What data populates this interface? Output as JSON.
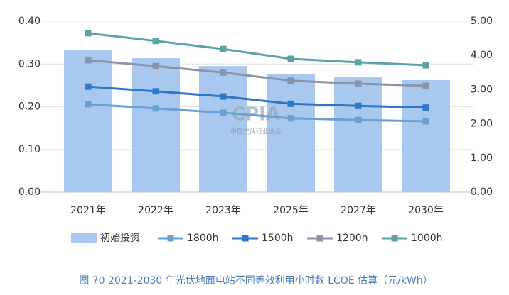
{
  "chart_data": {
    "type": "bar-line",
    "categories": [
      "2021年",
      "2022年",
      "2023年",
      "2025年",
      "2027年",
      "2030年"
    ],
    "series": [
      {
        "name": "初始投资",
        "type": "bar",
        "axis": "y2",
        "color": "#a9c8f0",
        "values": [
          4.15,
          3.92,
          3.69,
          3.46,
          3.36,
          3.28
        ]
      },
      {
        "name": "1800h",
        "type": "line",
        "color": "#6a9fd4",
        "values": [
          0.206,
          0.196,
          0.186,
          0.173,
          0.169,
          0.166
        ]
      },
      {
        "name": "1500h",
        "type": "line",
        "color": "#2f75c8",
        "values": [
          0.247,
          0.236,
          0.224,
          0.207,
          0.202,
          0.198
        ]
      },
      {
        "name": "1200h",
        "type": "line",
        "color": "#8a93a8",
        "values": [
          0.309,
          0.295,
          0.28,
          0.261,
          0.254,
          0.249
        ]
      },
      {
        "name": "1000h",
        "type": "line",
        "color": "#5ba3a8",
        "values": [
          0.372,
          0.354,
          0.335,
          0.312,
          0.304,
          0.297
        ]
      }
    ],
    "ylim": [
      0,
      0.4
    ],
    "yticks": [
      {
        "value": 0,
        "label": "0.00"
      },
      {
        "value": 0.1,
        "label": "0.10"
      },
      {
        "value": 0.2,
        "label": "0.20"
      },
      {
        "value": 0.3,
        "label": "0.30"
      },
      {
        "value": 0.4,
        "label": "0.40"
      }
    ],
    "y2lim": [
      0,
      5
    ],
    "y2ticks": [
      {
        "value": 0,
        "label": "0.00"
      },
      {
        "value": 1,
        "label": "1.00"
      },
      {
        "value": 2,
        "label": "2.00"
      },
      {
        "value": 3,
        "label": "3.00"
      },
      {
        "value": 4,
        "label": "4.00"
      },
      {
        "value": 5,
        "label": "5.00"
      }
    ],
    "grid": true,
    "legend": "bottom",
    "watermark": [
      "CPIA",
      "中国光伏行业协会"
    ],
    "caption": "图 70   2021-2030 年光伏地面电站不同等效利用小时数 LCOE 估算（元/kWh）"
  }
}
